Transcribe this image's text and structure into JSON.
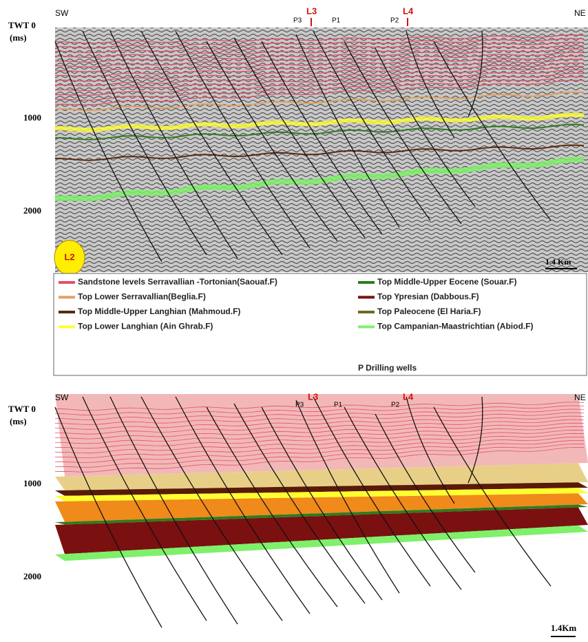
{
  "top_panel": {
    "axis_label": "TWT 0",
    "axis_unit": "(ms)",
    "ticks": [
      1000,
      2000
    ],
    "left_dir": "SW",
    "right_dir": "NE",
    "wells": [
      "P3",
      "P1",
      "P2"
    ],
    "lines": [
      "L3",
      "L4"
    ],
    "section_label": "L2",
    "scale": "1.4 Km"
  },
  "legend": {
    "items": [
      {
        "label": "Sandstone levels Serravallian -Tortonian(Saouaf.F)",
        "color": "#e2506a"
      },
      {
        "label": "Top Lower Serravallian(Beglia.F)",
        "color": "#e0a060"
      },
      {
        "label": "Top Middle-Upper Langhian (Mahmoud.F)",
        "color": "#5a2a10"
      },
      {
        "label": "Top Lower Langhian (Ain Ghrab.F)",
        "color": "#ffff30"
      },
      {
        "label": "Top Middle-Upper Eocene (Souar.F)",
        "color": "#2e7d1e"
      },
      {
        "label": "Top Ypresian (Dabbous.F)",
        "color": "#7a1010"
      },
      {
        "label": "Top Paleocene (El Haria.F)",
        "color": "#6b6b1e"
      },
      {
        "label": "Top Campanian-Maastrichtian (Abiod.F)",
        "color": "#7ef06a"
      }
    ],
    "note": "P Drilling wells"
  },
  "bottom_panel": {
    "axis_label": "TWT 0",
    "axis_unit": "(ms)",
    "ticks": [
      1000,
      2000
    ],
    "left_dir": "SW",
    "right_dir": "NE",
    "wells": [
      "P3",
      "P1",
      "P2"
    ],
    "lines": [
      "L3",
      "L4"
    ],
    "scale": "1.4Km"
  }
}
